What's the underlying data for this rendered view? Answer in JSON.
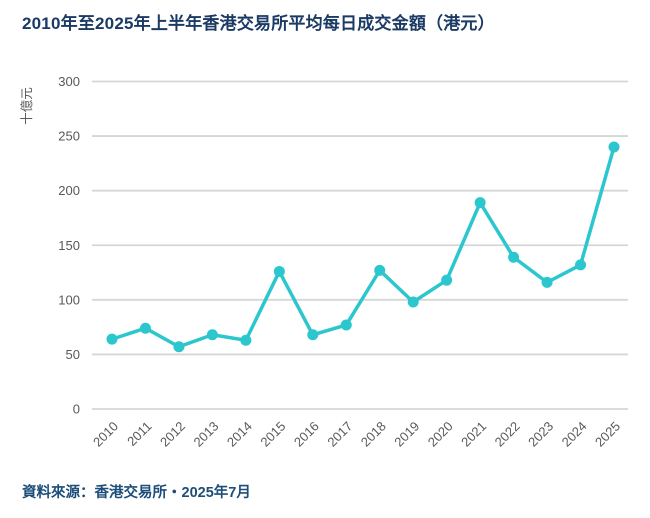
{
  "page": {
    "title": "2010年至2025年上半年香港交易所平均每日成交金額（港元）",
    "source_note": "資料來源：香港交易所・2025年7月"
  },
  "colors": {
    "background": "#ffffff",
    "title": "#1b3a64",
    "source": "#1d4e79",
    "line": "#2bc6ce",
    "gridline": "#d6d6d6",
    "tick_label": "#595959"
  },
  "chart_data": {
    "type": "line",
    "title": "2010年至2025年上半年香港交易所平均每日成交金額（港元）",
    "ylabel": "十億元",
    "xlabel": "",
    "categories": [
      "2010",
      "2011",
      "2012",
      "2013",
      "2014",
      "2015",
      "2016",
      "2017",
      "2018",
      "2019",
      "2020",
      "2021",
      "2022",
      "2023",
      "2024",
      "2025"
    ],
    "values": [
      64,
      74,
      57,
      68,
      63,
      126,
      68,
      77,
      127,
      98,
      118,
      189,
      139,
      116,
      132,
      240
    ],
    "ylim": [
      0,
      300
    ],
    "ytick_step": 50,
    "yticks": [
      0,
      50,
      100,
      150,
      200,
      250,
      300
    ],
    "grid": "horizontal",
    "legend": "none",
    "marker": "circle",
    "x_tick_rotation": -45
  }
}
